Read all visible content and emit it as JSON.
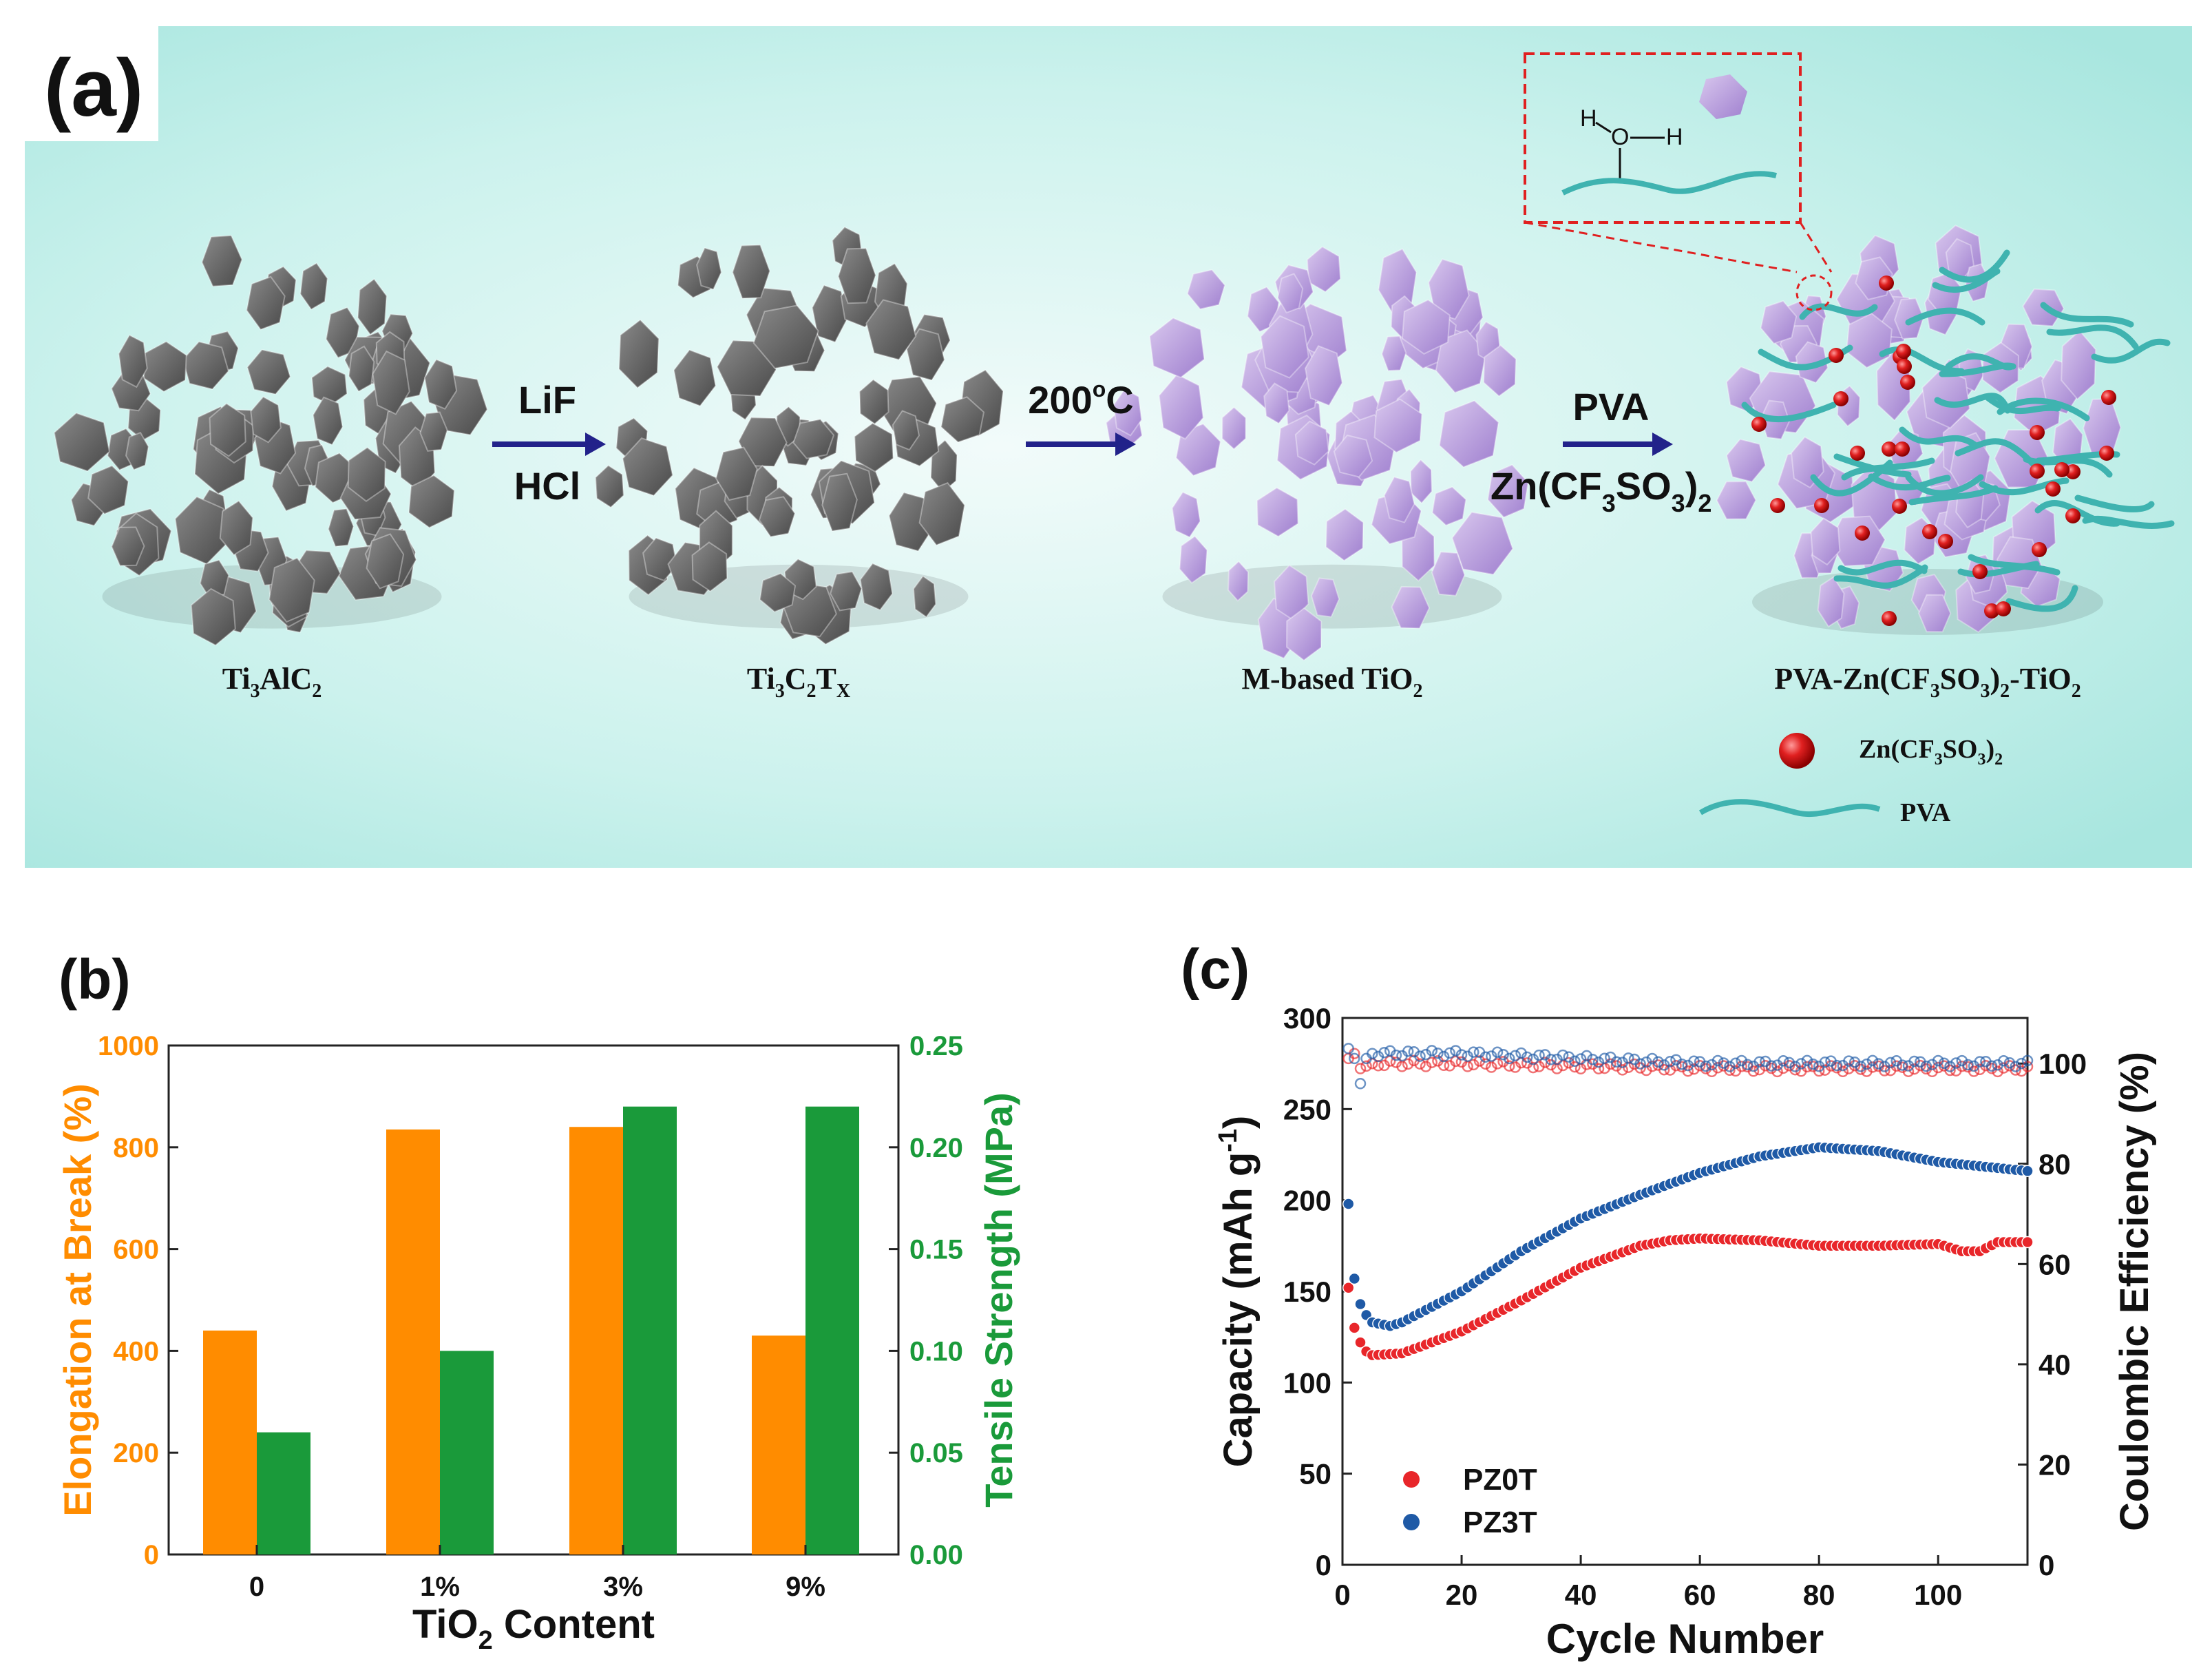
{
  "panel_a": {
    "label": "(a)",
    "steps": [
      {
        "name": "Ti3AlC2",
        "base": "Ti",
        "s1": "3",
        "mid": "AlC",
        "s2": "2"
      },
      {
        "name": "Ti3C2TX",
        "base": "Ti",
        "s1": "3",
        "mid": "C",
        "s2": "2",
        "mid2": "T",
        "s3": "X"
      },
      {
        "name": "M-based TiO2",
        "base": "M-based TiO",
        "s1": "2"
      },
      {
        "name": "PVA-Zn(CF3SO3)2-TiO2",
        "t1": "PVA-Zn(CF",
        "s1": "3",
        "t2": "SO",
        "s2": "3",
        "t3": ")",
        "s3": "2",
        "t4": "-TiO",
        "s4": "2"
      }
    ],
    "arrows": [
      {
        "top": "LiF",
        "bottom": "HCl"
      },
      {
        "top_main": "200",
        "top_sup": "o",
        "top_end": "C"
      },
      {
        "top": "PVA",
        "b1": "Zn(CF",
        "bs1": "3",
        "b2": "SO",
        "bs2": "3",
        "b3": ")",
        "bs3": "2"
      }
    ],
    "inset": {
      "h1": "H",
      "o": "O",
      "h2": "H"
    },
    "legend": [
      {
        "t1": "Zn(CF",
        "s1": "3",
        "t2": "SO",
        "s2": "3",
        "t3": ")",
        "s3": "2"
      },
      {
        "label": "PVA"
      }
    ],
    "colors": {
      "background": "#bff0ea",
      "flake_gray": "#6e6e6e",
      "flake_purple": "#b79ad8",
      "ball_red": "#d81e1e",
      "pva": "#3fb3b0"
    }
  },
  "chart_data": [
    {
      "panel_label": "(b)",
      "type": "bar",
      "categories": [
        "0",
        "1%",
        "3%",
        "9%"
      ],
      "xlabel_main": "TiO",
      "xlabel_sub": "2",
      "xlabel_end": " Content",
      "series": [
        {
          "name": "Elongation at Break (%)",
          "axis": "left",
          "color": "#ff8c00",
          "values": [
            440,
            835,
            840,
            430
          ]
        },
        {
          "name": "Tensile Strength (MPa)",
          "axis": "right",
          "color": "#1a9a3a",
          "values": [
            0.06,
            0.1,
            0.22,
            0.22
          ]
        }
      ],
      "ylabel_left": "Elongation at Break (%)",
      "ylabel_right": "Tensile Strength (MPa)",
      "ylim_left": [
        0,
        1000
      ],
      "yticks_left": [
        "0",
        "200",
        "400",
        "600",
        "800",
        "1000"
      ],
      "ylim_right": [
        0,
        0.25
      ],
      "yticks_right": [
        "0.00",
        "0.05",
        "0.10",
        "0.15",
        "0.20",
        "0.25"
      ]
    },
    {
      "panel_label": "(c)",
      "type": "scatter",
      "xlabel": "Cycle Number",
      "ylabel_left_main": "Capacity (mAh g",
      "ylabel_left_sup": "-1",
      "ylabel_left_end": ")",
      "ylabel_right": "Coulombic Efficiency (%)",
      "xlim": [
        0,
        115
      ],
      "ylim_left": [
        0,
        300
      ],
      "ylim_right": [
        0,
        109.1
      ],
      "xticks": [
        "0",
        "20",
        "40",
        "60",
        "80",
        "100"
      ],
      "yticks_left": [
        "0",
        "50",
        "100",
        "150",
        "200",
        "250",
        "300"
      ],
      "yticks_right": [
        "0",
        "20",
        "40",
        "60",
        "80",
        "100"
      ],
      "series": [
        {
          "name": "PZ0T",
          "color": "#e8262a",
          "capacity_keypoints": [
            [
              1,
              152
            ],
            [
              2,
              130
            ],
            [
              3,
              122
            ],
            [
              4,
              117
            ],
            [
              5,
              115
            ],
            [
              10,
              116
            ],
            [
              20,
              128
            ],
            [
              30,
              145
            ],
            [
              40,
              163
            ],
            [
              50,
              175
            ],
            [
              55,
              178
            ],
            [
              60,
              179
            ],
            [
              70,
              178
            ],
            [
              80,
              175
            ],
            [
              90,
              175
            ],
            [
              100,
              176
            ],
            [
              104,
              172
            ],
            [
              107,
              172
            ],
            [
              110,
              177
            ],
            [
              115,
              177
            ]
          ],
          "ce_keypoints": [
            [
              1,
              101
            ],
            [
              2,
              102
            ],
            [
              3,
              99
            ],
            [
              5,
              100
            ],
            [
              20,
              100
            ],
            [
              60,
              99
            ],
            [
              100,
              99
            ],
            [
              115,
              99
            ]
          ]
        },
        {
          "name": "PZ3T",
          "color": "#1f5aa6",
          "capacity_keypoints": [
            [
              1,
              198
            ],
            [
              2,
              157
            ],
            [
              3,
              143
            ],
            [
              4,
              137
            ],
            [
              5,
              133
            ],
            [
              8,
              131
            ],
            [
              10,
              133
            ],
            [
              20,
              150
            ],
            [
              30,
              172
            ],
            [
              40,
              190
            ],
            [
              50,
              203
            ],
            [
              60,
              215
            ],
            [
              70,
              224
            ],
            [
              80,
              229
            ],
            [
              90,
              227
            ],
            [
              100,
              221
            ],
            [
              115,
              216
            ]
          ],
          "ce_keypoints": [
            [
              1,
              103
            ],
            [
              2,
              101
            ],
            [
              3,
              96
            ],
            [
              4,
              101
            ],
            [
              5,
              102
            ],
            [
              20,
              102
            ],
            [
              60,
              100
            ],
            [
              100,
              100
            ],
            [
              115,
              100
            ]
          ]
        }
      ]
    }
  ]
}
